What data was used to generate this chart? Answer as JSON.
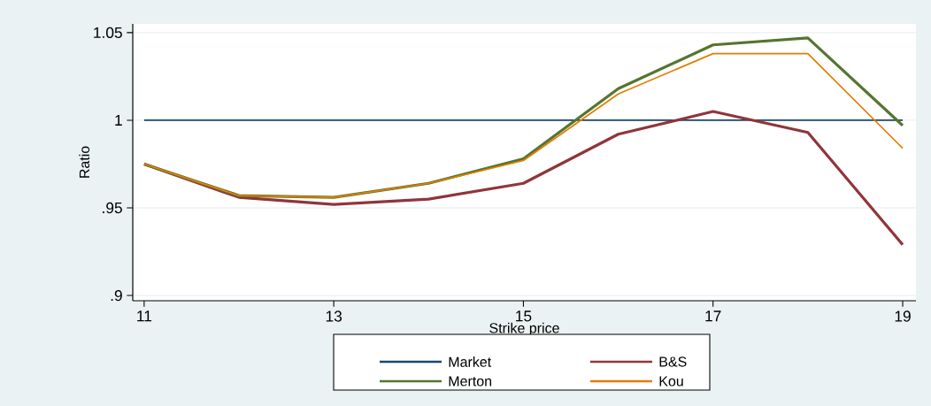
{
  "chart_data": {
    "type": "line",
    "xlabel": "Strike price",
    "ylabel": "Ratio",
    "x": [
      11,
      12,
      13,
      14,
      15,
      16,
      17,
      18,
      19
    ],
    "series": [
      {
        "name": "Market",
        "color": "#1a476f",
        "values": [
          1,
          1,
          1,
          1,
          1,
          1,
          1,
          1,
          1
        ]
      },
      {
        "name": "B&S",
        "color": "#90353b",
        "values": [
          0.975,
          0.956,
          0.952,
          0.955,
          0.964,
          0.992,
          1.005,
          0.993,
          0.929
        ]
      },
      {
        "name": "Merton",
        "color": "#55752f",
        "values": [
          0.975,
          0.957,
          0.956,
          0.964,
          0.978,
          1.018,
          1.043,
          1.047,
          0.997
        ]
      },
      {
        "name": "Kou",
        "color": "#e37e00",
        "values": [
          0.975,
          0.957,
          0.956,
          0.964,
          0.977,
          1.015,
          1.038,
          1.038,
          0.984
        ]
      }
    ],
    "xlim": [
      10.88,
      19.14
    ],
    "ylim": [
      0.897,
      1.055
    ],
    "xticks": [
      11,
      13,
      15,
      17,
      19
    ],
    "yticks": [
      {
        "value": 0.9,
        "label": ".9"
      },
      {
        "value": 0.95,
        "label": ".95"
      },
      {
        "value": 1,
        "label": "1"
      },
      {
        "value": 1.05,
        "label": "1.05"
      }
    ],
    "grid": "y",
    "legend": "bottom",
    "line_style": "solid"
  }
}
